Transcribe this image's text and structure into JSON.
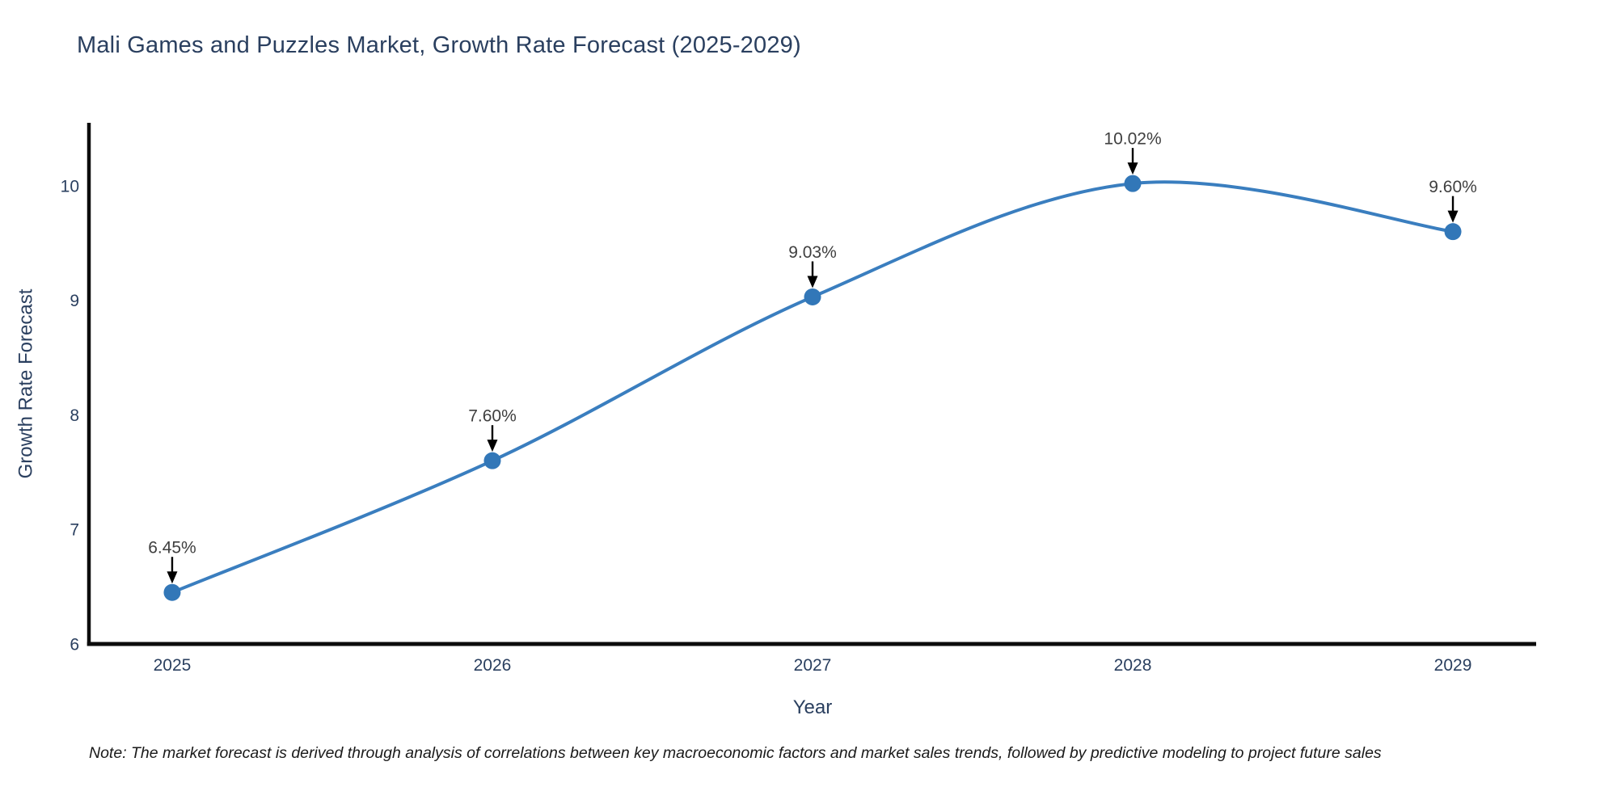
{
  "chart": {
    "title": "Mali Games and Puzzles Market, Growth Rate Forecast (2025-2029)",
    "xlabel": "Year",
    "ylabel": "Growth Rate Forecast"
  },
  "note": "Note: The market forecast is derived through analysis of correlations between key macroeconomic factors and market sales trends, followed by predictive modeling to project future sales",
  "chart_data": {
    "type": "line",
    "title": "Mali Games and Puzzles Market, Growth Rate Forecast (2025-2029)",
    "xlabel": "Year",
    "ylabel": "Growth Rate Forecast",
    "x": [
      2025,
      2026,
      2027,
      2028,
      2029
    ],
    "values": [
      6.45,
      7.6,
      9.03,
      10.02,
      9.6
    ],
    "point_labels": [
      "6.45%",
      "7.60%",
      "9.03%",
      "10.02%",
      "9.60%"
    ],
    "xticks": [
      "2025",
      "2026",
      "2027",
      "2028",
      "2029"
    ],
    "yticks": [
      "6",
      "7",
      "8",
      "9",
      "10"
    ],
    "xlim": [
      2024.74,
      2029.26
    ],
    "ylim": [
      6,
      10.55
    ],
    "grid": false,
    "legend": "none",
    "line_shape": "spline",
    "line_color": "#3a7ebf",
    "marker_color": "#3277b8",
    "arrow_color": "#000000"
  },
  "colors": {
    "background": "#ffffff",
    "title_text": "#2a3f5f",
    "axis_text": "#2a3f5f",
    "annotation_text": "#3f3f3f",
    "axis_line": "#0c0c0c",
    "note_text": "#1a1a1a"
  }
}
